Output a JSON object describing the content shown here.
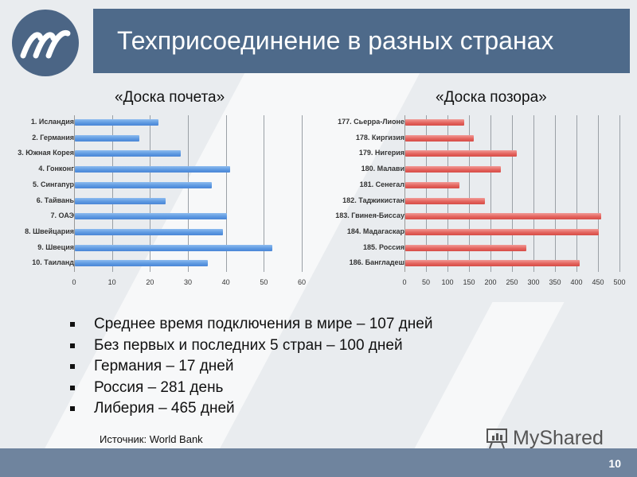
{
  "slide": {
    "title": "Техприсоединение в разных странах",
    "page_number": "10",
    "source": "Источник: World Bank",
    "watermark": "MyShared",
    "colors": {
      "title_bar": "#4e6a8a",
      "footer": "#6f849e",
      "left_bars": "#5b97e0",
      "right_bars": "#e2615b"
    }
  },
  "subtitles": {
    "left": "«Доска почета»",
    "right": "«Доска позора»"
  },
  "bullets": [
    "Среднее время подключения в мире – 107 дней",
    "Без первых и последних 5 стран – 100 дней",
    "Германия  – 17 дней",
    "Россия – 281 день",
    "Либерия  – 465 дней"
  ],
  "chart_data": [
    {
      "type": "bar",
      "orientation": "horizontal",
      "title": "«Доска почета»",
      "categories": [
        "1. Исландия",
        "2. Германия",
        "3. Южная Корея",
        "4. Гонконг",
        "5. Сингапур",
        "6. Тайвань",
        "7. ОАЭ",
        "8. Швейцария",
        "9. Швеция",
        "10. Таиланд"
      ],
      "values": [
        22,
        17,
        28,
        41,
        36,
        24,
        40,
        39,
        52,
        35
      ],
      "xlabel": "",
      "ylabel": "",
      "xlim": [
        0,
        60
      ],
      "ticks": [
        "0",
        "10",
        "20",
        "30",
        "40",
        "50",
        "60"
      ],
      "grid": true,
      "legend": false
    },
    {
      "type": "bar",
      "orientation": "horizontal",
      "title": "«Доска позора»",
      "categories": [
        "177. Сьерра-Лионе",
        "178. Киргизия",
        "179. Нигерия",
        "180. Малави",
        "181. Сенегал",
        "182. Таджикистан",
        "183. Гвинея-Биссау",
        "184. Мадагаскар",
        "185. Россия",
        "186. Бангладеш"
      ],
      "values": [
        137,
        159,
        260,
        222,
        125,
        185,
        455,
        450,
        281,
        405
      ],
      "xlabel": "",
      "ylabel": "",
      "xlim": [
        0,
        500
      ],
      "ticks": [
        "0",
        "50",
        "100",
        "150",
        "200",
        "250",
        "300",
        "350",
        "400",
        "450",
        "500"
      ],
      "grid": true,
      "legend": false
    }
  ]
}
